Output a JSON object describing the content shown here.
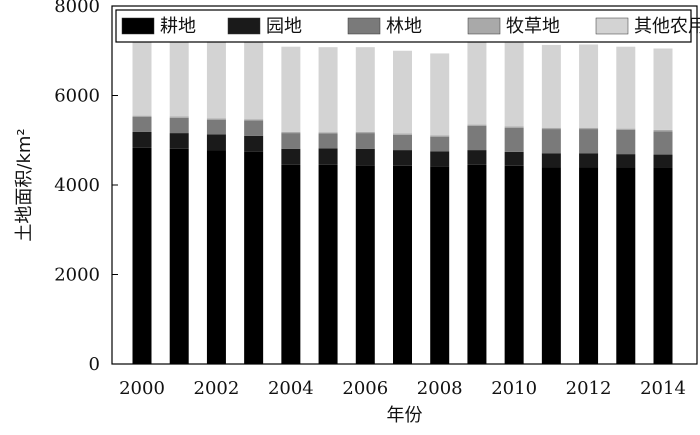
{
  "chart_data": {
    "type": "bar",
    "stacked": true,
    "categories": [
      "2000",
      "2001",
      "2002",
      "2003",
      "2004",
      "2005",
      "2006",
      "2007",
      "2008",
      "2009",
      "2010",
      "2011",
      "2012",
      "2013",
      "2014"
    ],
    "x_tick_labels": [
      "2000",
      "2002",
      "2004",
      "2006",
      "2008",
      "2010",
      "2012",
      "2014"
    ],
    "xlabel": "年份",
    "ylabel": "土地面积/km²",
    "ylim": [
      0,
      8000
    ],
    "y_ticks": [
      0,
      2000,
      4000,
      6000,
      8000
    ],
    "grid": false,
    "legend_position": "top",
    "series": [
      {
        "name": "耕地",
        "color": "#000000",
        "values": [
          4830,
          4810,
          4780,
          4740,
          4450,
          4450,
          4440,
          4430,
          4420,
          4450,
          4430,
          4400,
          4400,
          4390,
          4380
        ]
      },
      {
        "name": "园地",
        "color": "#1a1a1a",
        "values": [
          360,
          350,
          350,
          360,
          360,
          370,
          370,
          350,
          330,
          330,
          310,
          310,
          310,
          300,
          300
        ]
      },
      {
        "name": "林地",
        "color": "#7a7a7a",
        "values": [
          330,
          340,
          330,
          340,
          350,
          330,
          350,
          340,
          330,
          540,
          540,
          540,
          540,
          540,
          520
        ]
      },
      {
        "name": "牧草地",
        "color": "#a9a9a9",
        "values": [
          30,
          30,
          30,
          30,
          30,
          30,
          30,
          30,
          30,
          30,
          30,
          30,
          30,
          30,
          30
        ]
      },
      {
        "name": "其他农用地",
        "color": "#d3d3d3",
        "values": [
          1730,
          1740,
          1720,
          1740,
          1900,
          1900,
          1890,
          1850,
          1830,
          1900,
          1870,
          1850,
          1860,
          1830,
          1820
        ]
      }
    ]
  }
}
